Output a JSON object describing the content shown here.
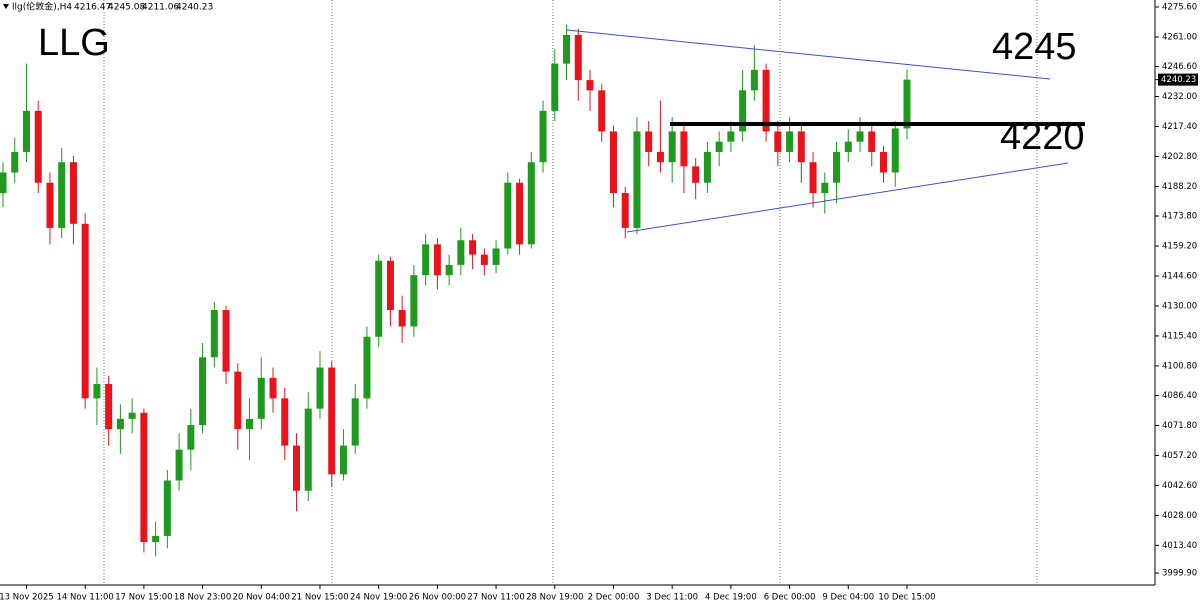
{
  "chart_data": {
    "type": "candlestick",
    "title": "LLG",
    "symbol": "llg(伦敦金),H4",
    "annotations": [
      "4245",
      "4220"
    ],
    "up_color": "#1f9a1f",
    "down_color": "#e8141c",
    "categories": [
      null,
      null,
      "13 Nov 2025",
      null,
      null,
      null,
      null,
      "14 Nov 11:00",
      null,
      null,
      null,
      null,
      "17 Nov 15:00",
      null,
      null,
      null,
      null,
      "18 Nov 23:00",
      null,
      null,
      null,
      null,
      "20 Nov 04:00",
      null,
      null,
      null,
      null,
      "21 Nov 15:00",
      null,
      null,
      null,
      null,
      "24 Nov 19:00",
      null,
      null,
      null,
      null,
      "26 Nov 00:00",
      null,
      null,
      null,
      null,
      "27 Nov 11:00",
      null,
      null,
      null,
      null,
      "28 Nov 19:00",
      null,
      null,
      null,
      null,
      "2 Dec 00:00",
      null,
      null,
      null,
      null,
      "3 Dec 11:00",
      null,
      null,
      null,
      null,
      "4 Dec 19:00",
      null,
      null,
      null,
      null,
      "6 Dec 00:00",
      null,
      null,
      null,
      null,
      "9 Dec 04:00",
      null,
      null,
      null,
      null,
      "10 Dec 15:00"
    ],
    "open": [
      4185,
      4195,
      4205,
      4225,
      4190,
      4168,
      4200,
      4170,
      4085,
      4092,
      4070,
      4075,
      4078,
      4015,
      4018,
      4045,
      4060,
      4072,
      4105,
      4128,
      4098,
      4070,
      4075,
      4095,
      4085,
      4062,
      4040,
      4080,
      4100,
      4048,
      4062,
      4085,
      4115,
      4152,
      4128,
      4120,
      4145,
      4160,
      4145,
      4150,
      4162,
      4155,
      4150,
      4158,
      4190,
      4160,
      4200,
      4225,
      4248,
      4262,
      4240,
      4235,
      4215,
      4185,
      4168,
      4215,
      4205,
      4200,
      4215,
      4198,
      4190,
      4205,
      4210,
      4215,
      4235,
      4245,
      4215,
      4205,
      4215,
      4200,
      4185,
      4190,
      4205,
      4210,
      4215,
      4205,
      4195,
      4216.47
    ],
    "high": [
      4200,
      4212,
      4248,
      4230,
      4195,
      4207,
      4203,
      4175,
      4100,
      4096,
      4082,
      4085,
      4080,
      4025,
      4050,
      4068,
      4080,
      4112,
      4132,
      4130,
      4102,
      4085,
      4105,
      4100,
      4090,
      4068,
      4088,
      4108,
      4103,
      4070,
      4092,
      4120,
      4155,
      4154,
      4135,
      4150,
      4165,
      4163,
      4155,
      4168,
      4165,
      4158,
      4162,
      4195,
      4192,
      4205,
      4230,
      4255,
      4267,
      4265,
      4245,
      4238,
      4218,
      4188,
      4222,
      4220,
      4230,
      4222,
      4218,
      4202,
      4210,
      4215,
      4220,
      4245,
      4257,
      4248,
      4220,
      4222,
      4218,
      4205,
      4195,
      4210,
      4216,
      4222,
      4218,
      4208,
      4220,
      4245.08
    ],
    "low": [
      4178,
      4190,
      4200,
      4185,
      4160,
      4163,
      4160,
      4080,
      4072,
      4062,
      4058,
      4068,
      4010,
      4008,
      4012,
      4040,
      4050,
      4068,
      4100,
      4092,
      4060,
      4055,
      4070,
      4078,
      4055,
      4030,
      4035,
      4075,
      4042,
      4045,
      4058,
      4080,
      4110,
      4120,
      4112,
      4115,
      4140,
      4138,
      4140,
      4145,
      4148,
      4145,
      4146,
      4155,
      4155,
      4158,
      4195,
      4220,
      4240,
      4230,
      4225,
      4210,
      4178,
      4163,
      4165,
      4198,
      4195,
      4190,
      4185,
      4182,
      4185,
      4198,
      4205,
      4210,
      4230,
      4210,
      4198,
      4200,
      4190,
      4178,
      4175,
      4180,
      4200,
      4205,
      4198,
      4190,
      4188,
      4211.06
    ],
    "close": [
      4195,
      4205,
      4225,
      4190,
      4168,
      4200,
      4170,
      4085,
      4092,
      4070,
      4075,
      4078,
      4015,
      4018,
      4045,
      4060,
      4072,
      4105,
      4128,
      4098,
      4070,
      4075,
      4095,
      4085,
      4062,
      4040,
      4080,
      4100,
      4048,
      4062,
      4085,
      4115,
      4152,
      4128,
      4120,
      4145,
      4160,
      4145,
      4150,
      4162,
      4155,
      4150,
      4158,
      4190,
      4160,
      4200,
      4225,
      4248,
      4262,
      4240,
      4235,
      4215,
      4185,
      4168,
      4215,
      4205,
      4200,
      4215,
      4198,
      4190,
      4205,
      4210,
      4215,
      4235,
      4245,
      4215,
      4205,
      4215,
      4200,
      4185,
      4190,
      4205,
      4210,
      4215,
      4205,
      4195,
      4216.47,
      4240.23
    ],
    "ylim": [
      3994.1,
      4279.0
    ],
    "yticks": [
      {
        "value": 4275.6,
        "label": "4275.60"
      },
      {
        "value": 4261,
        "label": "4261.00"
      },
      {
        "value": 4246.6,
        "label": "4246.60"
      },
      {
        "value": 4232,
        "label": "4232.00"
      },
      {
        "value": 4217.4,
        "label": "4217.40"
      },
      {
        "value": 4202.8,
        "label": "4202.80"
      },
      {
        "value": 4188.2,
        "label": "4188.20"
      },
      {
        "value": 4173.8,
        "label": "4173.80"
      },
      {
        "value": 4159.2,
        "label": "4159.20"
      },
      {
        "value": 4144.6,
        "label": "4144.60"
      },
      {
        "value": 4130,
        "label": "4130.00"
      },
      {
        "value": 4115.4,
        "label": "4115.40"
      },
      {
        "value": 4100.8,
        "label": "4100.80"
      },
      {
        "value": 4086.4,
        "label": "4086.40"
      },
      {
        "value": 4071.8,
        "label": "4071.80"
      },
      {
        "value": 4057.2,
        "label": "4057.20"
      },
      {
        "value": 4042.6,
        "label": "4042.60"
      },
      {
        "value": 4028,
        "label": "4028.00"
      },
      {
        "value": 4013.4,
        "label": "4013.40"
      },
      {
        "value": 3999.9,
        "label": "3999.90"
      }
    ],
    "grid": false
  }
}
